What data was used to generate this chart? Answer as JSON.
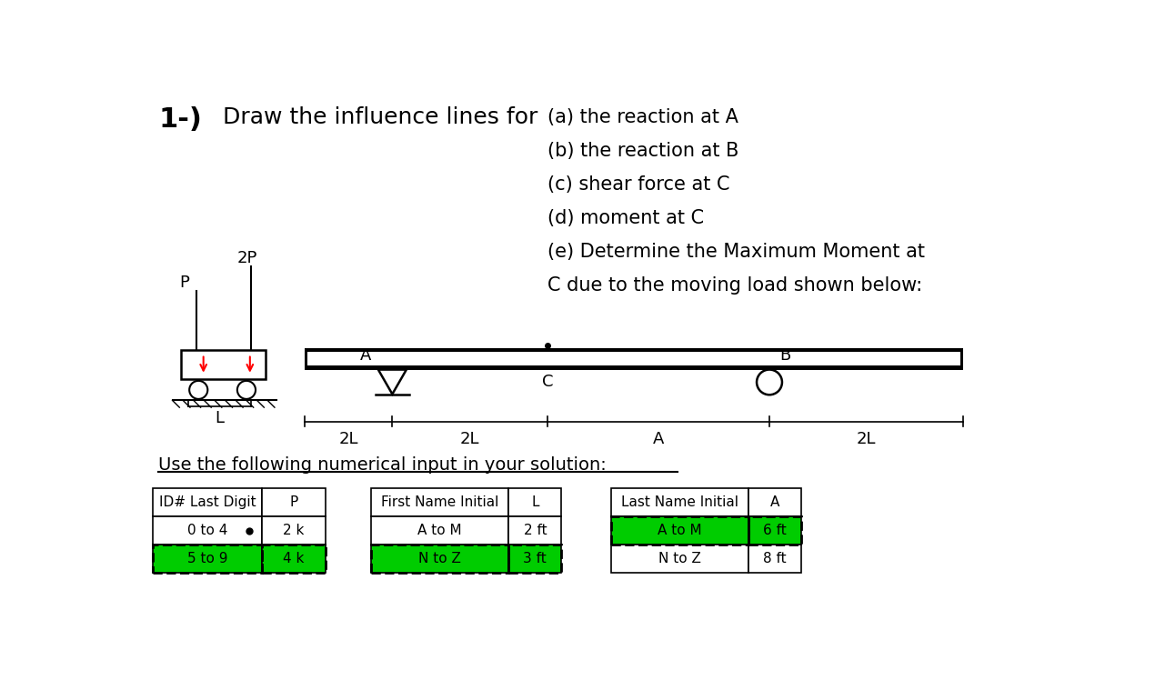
{
  "title_number": "1-)",
  "title_text": "Draw the influence lines for",
  "items": [
    "(a) the reaction at A",
    "(b) the reaction at B",
    "(c) shear force at C",
    "(d) moment at C",
    "(e) Determine the Maximum Moment at",
    "C due to the moving load shown below:"
  ],
  "use_text": "Use the following numerical input in your solution:",
  "table": {
    "col1_header": "ID# Last Digit",
    "col2_header": "P",
    "col3_header": "First Name Initial",
    "col4_header": "L",
    "col5_header": "Last Name Initial",
    "col6_header": "A",
    "row1": [
      "0 to 4",
      "2 k",
      "A to M",
      "2 ft",
      "A to M",
      "6 ft"
    ],
    "row2": [
      "5 to 9",
      "4 k",
      "N to Z",
      "3 ft",
      "N to Z",
      "8 ft"
    ]
  },
  "bg_color": "#ffffff",
  "beam_color": "#000000",
  "highlight_color": "#00cc00"
}
